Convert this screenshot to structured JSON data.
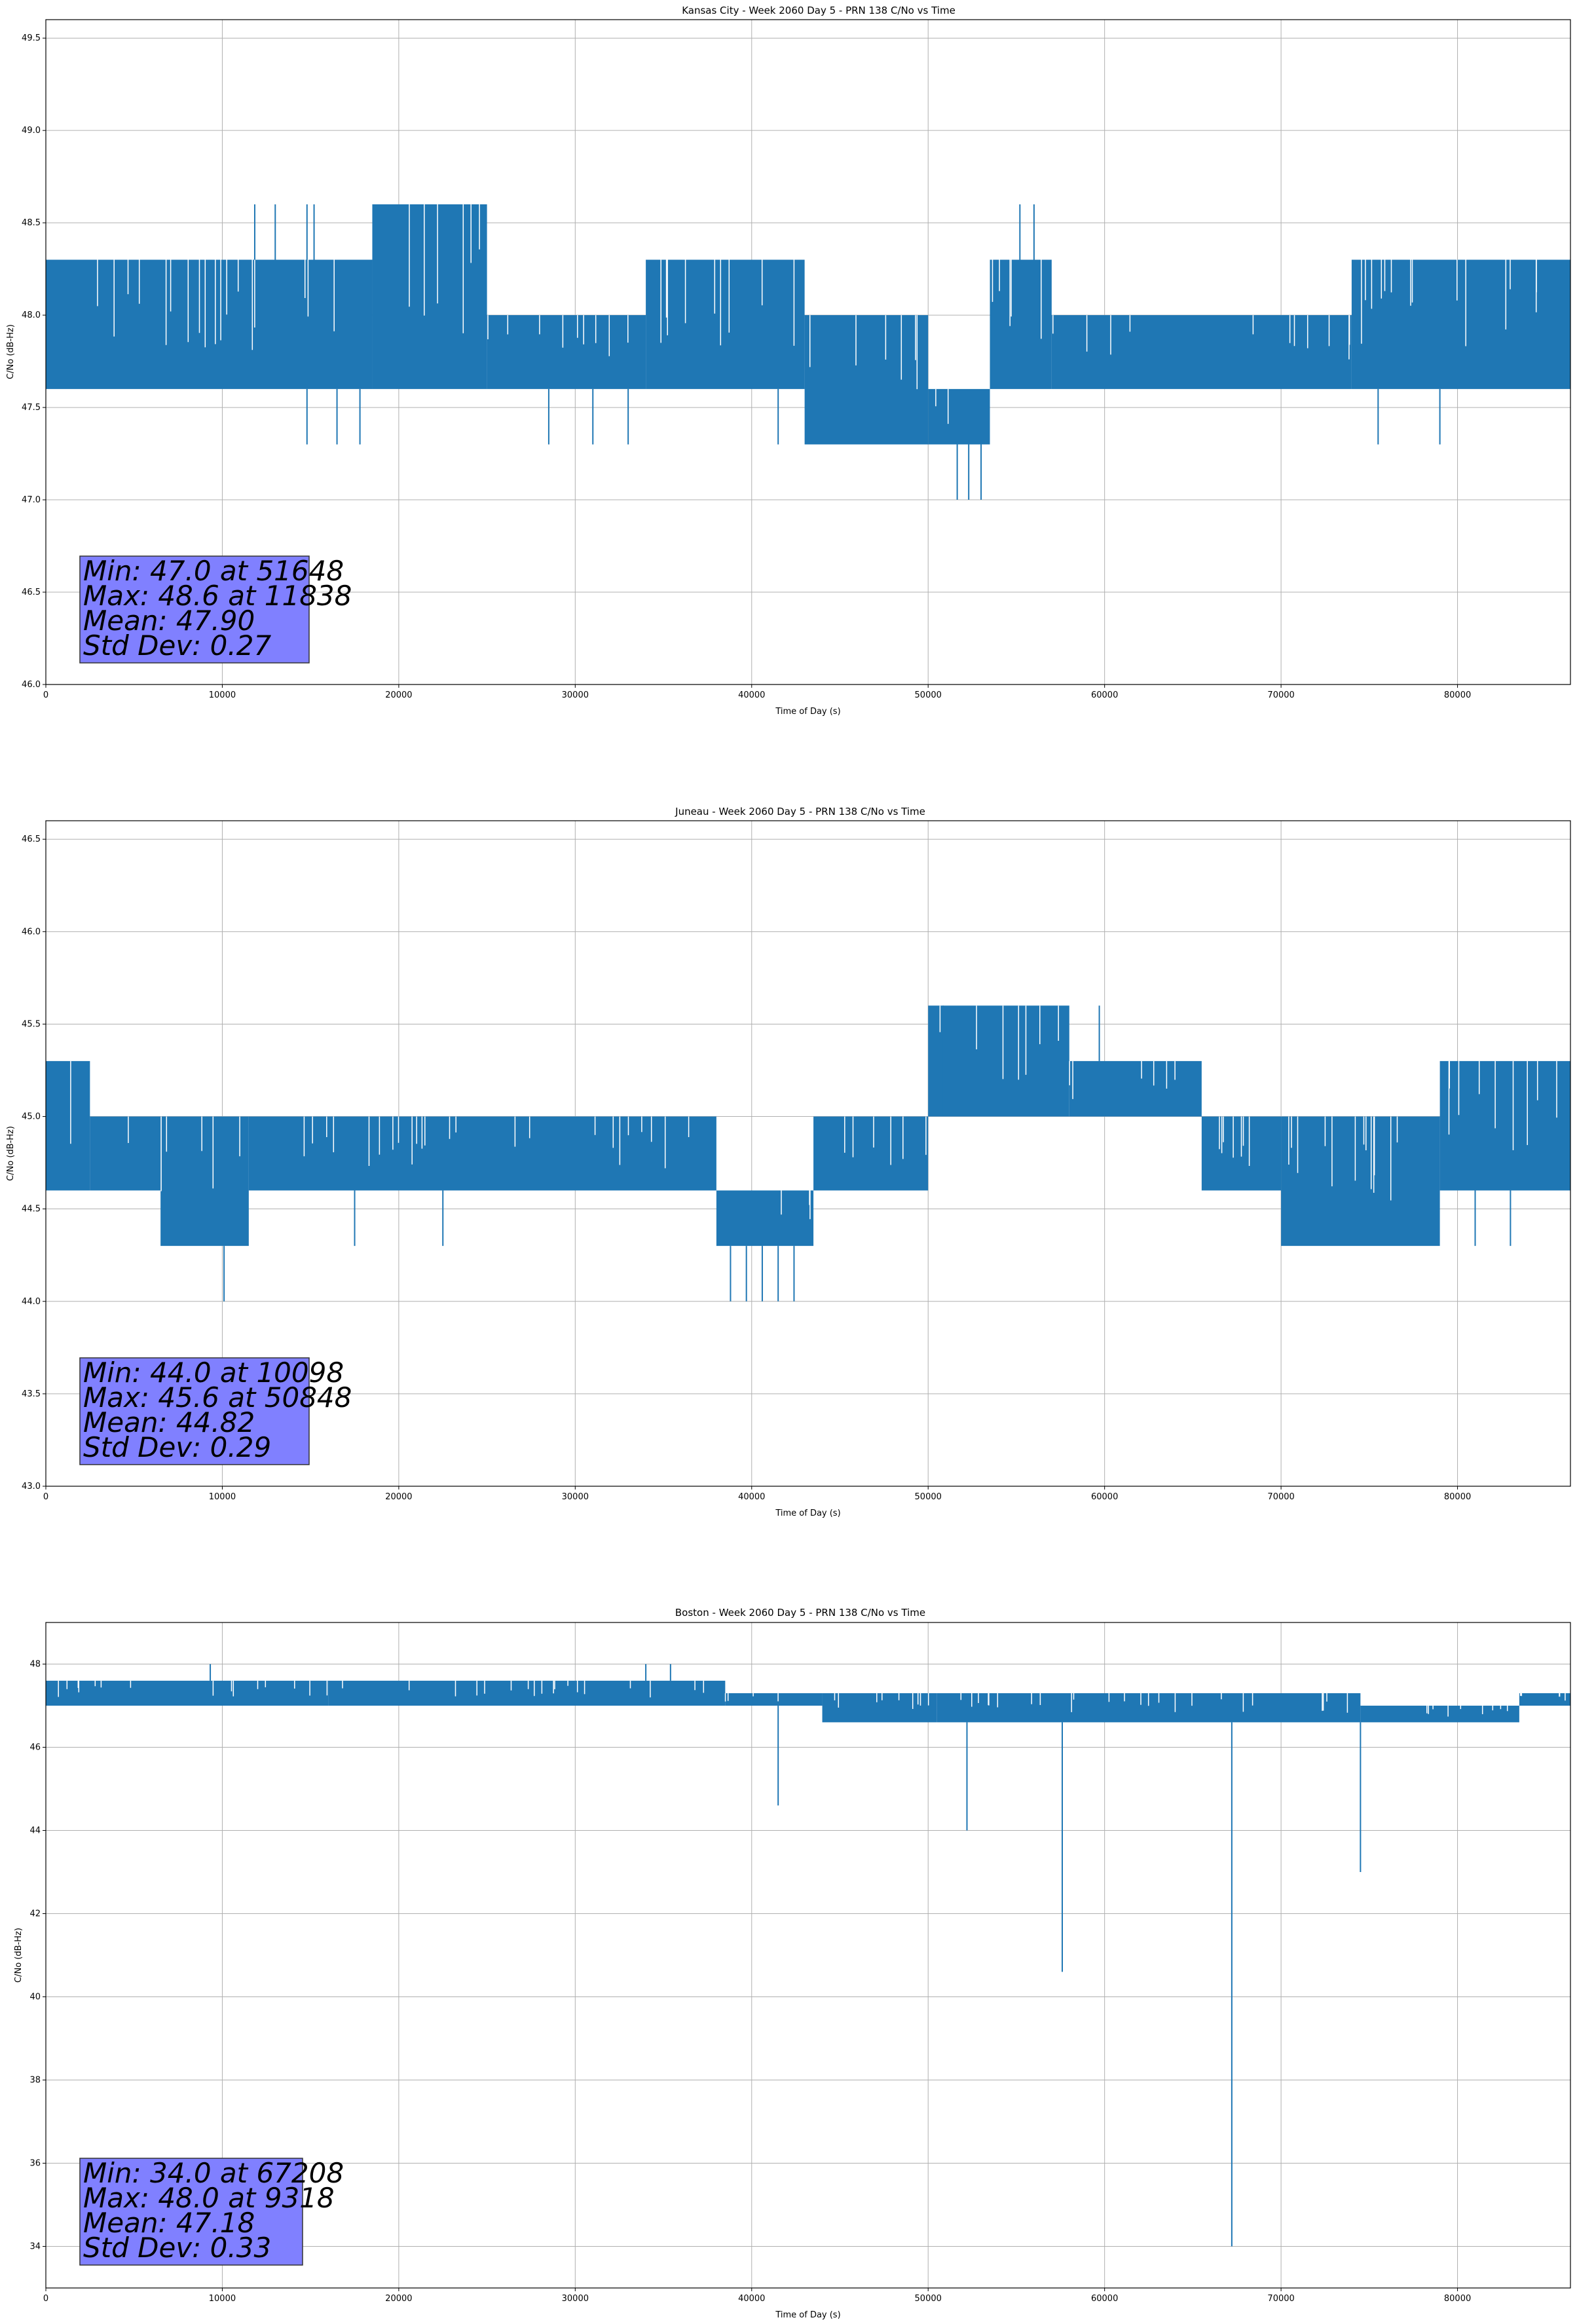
{
  "figure": {
    "line_color": "#1f77b4",
    "stats_box_color": "#8080ff"
  },
  "chart_data": [
    {
      "type": "line",
      "title": "Kansas City - Week 2060 Day 5 - PRN 138 C/No vs Time",
      "xlabel": "Time of Day (s)",
      "ylabel": "C/No (dB-Hz)",
      "xlim": [
        0,
        86400
      ],
      "ylim": [
        46.0,
        49.6
      ],
      "xticks": [
        0,
        10000,
        20000,
        30000,
        40000,
        50000,
        60000,
        70000,
        80000
      ],
      "yticks": [
        "46.0",
        "46.5",
        "47.0",
        "47.5",
        "48.0",
        "48.5",
        "49.0",
        "49.5"
      ],
      "grid": true,
      "stats_lines": [
        "Min: 47.0 at 51648",
        "Max: 48.6 at 11838",
        "Mean: 47.90",
        "Std Dev: 0.27"
      ],
      "series": [
        {
          "bands": [
            {
              "x": [
                0,
                18500
              ],
              "lo": 47.6,
              "hi": 48.3
            },
            {
              "x": [
                18500,
                25000
              ],
              "lo": 47.6,
              "hi": 48.6
            },
            {
              "x": [
                25000,
                34000
              ],
              "lo": 47.6,
              "hi": 48.0
            },
            {
              "x": [
                34000,
                43000
              ],
              "lo": 47.6,
              "hi": 48.3
            },
            {
              "x": [
                43000,
                50000
              ],
              "lo": 47.3,
              "hi": 48.0
            },
            {
              "x": [
                50000,
                53500
              ],
              "lo": 47.3,
              "hi": 47.6
            },
            {
              "x": [
                53500,
                57000
              ],
              "lo": 47.6,
              "hi": 48.3
            },
            {
              "x": [
                57000,
                74000
              ],
              "lo": 47.6,
              "hi": 48.0
            },
            {
              "x": [
                74000,
                86400
              ],
              "lo": 47.6,
              "hi": 48.3
            }
          ],
          "spikes": [
            {
              "x": 11838,
              "y": 48.6
            },
            {
              "x": 13000,
              "y": 48.6
            },
            {
              "x": 14800,
              "y": 48.6
            },
            {
              "x": 15200,
              "y": 48.6
            },
            {
              "x": 14800,
              "y": 47.3
            },
            {
              "x": 16500,
              "y": 47.3
            },
            {
              "x": 17800,
              "y": 47.3
            },
            {
              "x": 28500,
              "y": 47.3
            },
            {
              "x": 31000,
              "y": 47.3
            },
            {
              "x": 33000,
              "y": 47.3
            },
            {
              "x": 41500,
              "y": 47.3
            },
            {
              "x": 51648,
              "y": 47.0
            },
            {
              "x": 52300,
              "y": 47.0
            },
            {
              "x": 53000,
              "y": 47.0
            },
            {
              "x": 55200,
              "y": 48.6
            },
            {
              "x": 56000,
              "y": 48.6
            },
            {
              "x": 75500,
              "y": 47.3
            },
            {
              "x": 79000,
              "y": 47.3
            }
          ]
        }
      ]
    },
    {
      "type": "line",
      "title": "Juneau - Week 2060 Day 5 - PRN 138 C/No vs Time",
      "xlabel": "Time of Day (s)",
      "ylabel": "C/No (dB-Hz)",
      "xlim": [
        0,
        86400
      ],
      "ylim": [
        43.0,
        46.6
      ],
      "xticks": [
        0,
        10000,
        20000,
        30000,
        40000,
        50000,
        60000,
        70000,
        80000
      ],
      "yticks": [
        "43.0",
        "43.5",
        "44.0",
        "44.5",
        "45.0",
        "45.5",
        "46.0",
        "46.5"
      ],
      "grid": true,
      "stats_lines": [
        "Min: 44.0 at 10098",
        "Max: 45.6 at 50848",
        "Mean: 44.82",
        "Std Dev: 0.29"
      ],
      "series": [
        {
          "bands": [
            {
              "x": [
                0,
                2500
              ],
              "lo": 44.6,
              "hi": 45.3
            },
            {
              "x": [
                2500,
                6500
              ],
              "lo": 44.6,
              "hi": 45.0
            },
            {
              "x": [
                6500,
                11500
              ],
              "lo": 44.3,
              "hi": 45.0
            },
            {
              "x": [
                11500,
                38000
              ],
              "lo": 44.6,
              "hi": 45.0
            },
            {
              "x": [
                38000,
                43500
              ],
              "lo": 44.3,
              "hi": 44.6
            },
            {
              "x": [
                43500,
                50000
              ],
              "lo": 44.6,
              "hi": 45.0
            },
            {
              "x": [
                50000,
                58000
              ],
              "lo": 45.0,
              "hi": 45.6
            },
            {
              "x": [
                58000,
                65500
              ],
              "lo": 45.0,
              "hi": 45.3
            },
            {
              "x": [
                65500,
                70000
              ],
              "lo": 44.6,
              "hi": 45.0
            },
            {
              "x": [
                70000,
                79000
              ],
              "lo": 44.3,
              "hi": 45.0
            },
            {
              "x": [
                79000,
                86400
              ],
              "lo": 44.6,
              "hi": 45.3
            }
          ],
          "spikes": [
            {
              "x": 10098,
              "y": 44.0
            },
            {
              "x": 17500,
              "y": 44.3
            },
            {
              "x": 22500,
              "y": 44.3
            },
            {
              "x": 38800,
              "y": 44.0
            },
            {
              "x": 39700,
              "y": 44.0
            },
            {
              "x": 40600,
              "y": 44.0
            },
            {
              "x": 41500,
              "y": 44.0
            },
            {
              "x": 42400,
              "y": 44.0
            },
            {
              "x": 50848,
              "y": 45.6
            },
            {
              "x": 59700,
              "y": 45.6
            },
            {
              "x": 81000,
              "y": 44.3
            },
            {
              "x": 83000,
              "y": 44.3
            }
          ]
        }
      ]
    },
    {
      "type": "line",
      "title": "Boston - Week 2060 Day 5 - PRN 138 C/No vs Time",
      "xlabel": "Time of Day (s)",
      "ylabel": "C/No (dB-Hz)",
      "xlim": [
        0,
        86400
      ],
      "ylim": [
        33.0,
        49.0
      ],
      "xticks": [
        0,
        10000,
        20000,
        30000,
        40000,
        50000,
        60000,
        70000,
        80000
      ],
      "yticks": [
        "34",
        "36",
        "38",
        "40",
        "42",
        "44",
        "46",
        "48"
      ],
      "grid": true,
      "stats_lines": [
        "Min: 34.0 at 67208",
        "Max: 48.0 at 9318",
        "Mean: 47.18",
        "Std Dev: 0.33"
      ],
      "series": [
        {
          "bands": [
            {
              "x": [
                0,
                16000
              ],
              "lo": 47.0,
              "hi": 47.6
            },
            {
              "x": [
                16000,
                38500
              ],
              "lo": 47.0,
              "hi": 47.6
            },
            {
              "x": [
                38500,
                44000
              ],
              "lo": 47.0,
              "hi": 47.3
            },
            {
              "x": [
                44000,
                50500
              ],
              "lo": 46.6,
              "hi": 47.3
            },
            {
              "x": [
                50500,
                74500
              ],
              "lo": 46.6,
              "hi": 47.3
            },
            {
              "x": [
                74500,
                83500
              ],
              "lo": 46.6,
              "hi": 47.0
            },
            {
              "x": [
                83500,
                86400
              ],
              "lo": 47.0,
              "hi": 47.3
            }
          ],
          "spikes": [
            {
              "x": 9318,
              "y": 48.0
            },
            {
              "x": 34000,
              "y": 48.0
            },
            {
              "x": 35400,
              "y": 48.0
            },
            {
              "x": 41500,
              "y": 44.6
            },
            {
              "x": 52200,
              "y": 44.0
            },
            {
              "x": 57600,
              "y": 40.6
            },
            {
              "x": 67208,
              "y": 34.0
            },
            {
              "x": 74500,
              "y": 43.0
            }
          ]
        }
      ]
    }
  ]
}
